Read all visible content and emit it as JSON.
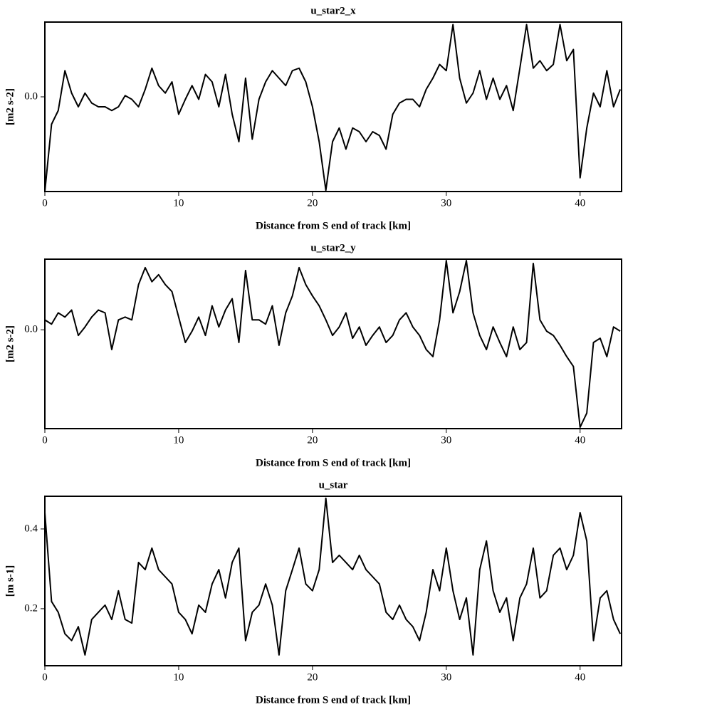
{
  "chart_data": [
    {
      "type": "line",
      "title": "u_star2_x",
      "xlabel": "Distance from S end of track [km]",
      "ylabel": "[m2 s-2]",
      "xlim": [
        0,
        43.1
      ],
      "ylim": [
        -0.076,
        0.06
      ],
      "xticks": [
        0,
        10,
        20,
        30,
        40
      ],
      "yticks": [
        {
          "value": 0,
          "label": "0.0"
        }
      ],
      "x": [
        0,
        0.5,
        1,
        1.5,
        2,
        2.5,
        3,
        3.5,
        4,
        4.5,
        5,
        5.5,
        6,
        6.5,
        7,
        7.5,
        8,
        8.5,
        9,
        9.5,
        10,
        10.5,
        11,
        11.5,
        12,
        12.5,
        13,
        13.5,
        14,
        14.5,
        15,
        15.5,
        16,
        16.5,
        17,
        17.5,
        18,
        18.5,
        19,
        19.5,
        20,
        20.5,
        21,
        21.5,
        22,
        22.5,
        23,
        23.5,
        24,
        24.5,
        25,
        25.5,
        26,
        26.5,
        27,
        27.5,
        28,
        28.5,
        29,
        29.5,
        30,
        30.5,
        31,
        31.5,
        32,
        32.5,
        33,
        33.5,
        34,
        34.5,
        35,
        35.5,
        36,
        36.5,
        37,
        37.5,
        38,
        38.5,
        39,
        39.5,
        40,
        40.5,
        41,
        41.5,
        42,
        42.5,
        43
      ],
      "series": [
        {
          "color": "#000000",
          "values": [
            -0.076,
            -0.022,
            -0.011,
            0.021,
            0.003,
            -0.008,
            0.003,
            -0.005,
            -0.008,
            -0.008,
            -0.011,
            -0.008,
            0.001,
            -0.002,
            -0.008,
            0.006,
            0.023,
            0.009,
            0.003,
            0.012,
            -0.014,
            -0.002,
            0.009,
            -0.002,
            0.018,
            0.012,
            -0.008,
            0.018,
            -0.014,
            -0.036,
            0.015,
            -0.034,
            -0.002,
            0.012,
            0.021,
            0.015,
            0.009,
            0.021,
            0.023,
            0.012,
            -0.008,
            -0.036,
            -0.075,
            -0.036,
            -0.025,
            -0.042,
            -0.025,
            -0.028,
            -0.036,
            -0.028,
            -0.031,
            -0.042,
            -0.014,
            -0.005,
            -0.002,
            -0.002,
            -0.008,
            0.006,
            0.015,
            0.026,
            0.021,
            0.058,
            0.015,
            -0.005,
            0.003,
            0.021,
            -0.002,
            0.015,
            -0.002,
            0.009,
            -0.011,
            0.023,
            0.058,
            0.023,
            0.029,
            0.021,
            0.026,
            0.058,
            0.029,
            0.038,
            -0.065,
            -0.025,
            0.003,
            -0.008,
            0.021,
            -0.008,
            0.006
          ]
        }
      ]
    },
    {
      "type": "line",
      "title": "u_star2_y",
      "xlabel": "Distance from S end of track [km]",
      "ylabel": "[m2 s-2]",
      "xlim": [
        0,
        43.1
      ],
      "ylim": [
        -0.07,
        0.05
      ],
      "xticks": [
        0,
        10,
        20,
        30,
        40
      ],
      "yticks": [
        {
          "value": 0,
          "label": "0.0"
        }
      ],
      "x": [
        0,
        0.5,
        1,
        1.5,
        2,
        2.5,
        3,
        3.5,
        4,
        4.5,
        5,
        5.5,
        6,
        6.5,
        7,
        7.5,
        8,
        8.5,
        9,
        9.5,
        10,
        10.5,
        11,
        11.5,
        12,
        12.5,
        13,
        13.5,
        14,
        14.5,
        15,
        15.5,
        16,
        16.5,
        17,
        17.5,
        18,
        18.5,
        19,
        19.5,
        20,
        20.5,
        21,
        21.5,
        22,
        22.5,
        23,
        23.5,
        24,
        24.5,
        25,
        25.5,
        26,
        26.5,
        27,
        27.5,
        28,
        28.5,
        29,
        29.5,
        30,
        30.5,
        31,
        31.5,
        32,
        32.5,
        33,
        33.5,
        34,
        34.5,
        35,
        35.5,
        36,
        36.5,
        37,
        37.5,
        38,
        38.5,
        39,
        39.5,
        40,
        40.5,
        41,
        41.5,
        42,
        42.5,
        43
      ],
      "series": [
        {
          "color": "#000000",
          "values": [
            0.007,
            0.004,
            0.012,
            0.009,
            0.014,
            -0.004,
            0.002,
            0.009,
            0.014,
            0.012,
            -0.014,
            0.007,
            0.009,
            0.007,
            0.032,
            0.044,
            0.034,
            0.039,
            0.032,
            0.027,
            0.009,
            -0.009,
            -0.001,
            0.009,
            -0.004,
            0.017,
            0.002,
            0.014,
            0.022,
            -0.009,
            0.042,
            0.007,
            0.007,
            0.004,
            0.017,
            -0.011,
            0.012,
            0.024,
            0.044,
            0.032,
            0.024,
            0.017,
            0.007,
            -0.004,
            0.002,
            0.012,
            -0.006,
            0.002,
            -0.011,
            -0.004,
            0.002,
            -0.009,
            -0.004,
            0.007,
            0.012,
            0.002,
            -0.004,
            -0.014,
            -0.019,
            0.007,
            0.049,
            0.012,
            0.027,
            0.049,
            0.012,
            -0.004,
            -0.014,
            0.002,
            -0.009,
            -0.019,
            0.002,
            -0.014,
            -0.009,
            0.047,
            0.007,
            -0.001,
            -0.004,
            -0.011,
            -0.019,
            -0.026,
            -0.069,
            -0.059,
            -0.009,
            -0.006,
            -0.019,
            0.002,
            -0.001
          ]
        }
      ]
    },
    {
      "type": "line",
      "title": "u_star",
      "xlabel": "Distance from S end of track [km]",
      "ylabel": "[m s-1]",
      "xlim": [
        0,
        43.1
      ],
      "ylim": [
        0.057,
        0.482
      ],
      "xticks": [
        0,
        10,
        20,
        30,
        40
      ],
      "yticks": [
        0.2,
        0.4
      ],
      "x": [
        0,
        0.5,
        1,
        1.5,
        2,
        2.5,
        3,
        3.5,
        4,
        4.5,
        5,
        5.5,
        6,
        6.5,
        7,
        7.5,
        8,
        8.5,
        9,
        9.5,
        10,
        10.5,
        11,
        11.5,
        12,
        12.5,
        13,
        13.5,
        14,
        14.5,
        15,
        15.5,
        16,
        16.5,
        17,
        17.5,
        18,
        18.5,
        19,
        19.5,
        20,
        20.5,
        21,
        21.5,
        22,
        22.5,
        23,
        23.5,
        24,
        24.5,
        25,
        25.5,
        26,
        26.5,
        27,
        27.5,
        28,
        28.5,
        29,
        29.5,
        30,
        30.5,
        31,
        31.5,
        32,
        32.5,
        33,
        33.5,
        34,
        34.5,
        35,
        35.5,
        36,
        36.5,
        37,
        37.5,
        38,
        38.5,
        39,
        39.5,
        40,
        40.5,
        41,
        41.5,
        42,
        42.5,
        43
      ],
      "series": [
        {
          "color": "#000000",
          "values": [
            0.441,
            0.218,
            0.191,
            0.137,
            0.12,
            0.155,
            0.084,
            0.173,
            0.191,
            0.209,
            0.173,
            0.245,
            0.173,
            0.164,
            0.316,
            0.298,
            0.352,
            0.298,
            0.28,
            0.262,
            0.191,
            0.173,
            0.137,
            0.209,
            0.191,
            0.262,
            0.298,
            0.227,
            0.316,
            0.352,
            0.12,
            0.191,
            0.209,
            0.262,
            0.209,
            0.084,
            0.245,
            0.298,
            0.352,
            0.262,
            0.245,
            0.298,
            0.477,
            0.316,
            0.334,
            0.316,
            0.298,
            0.334,
            0.298,
            0.28,
            0.262,
            0.191,
            0.173,
            0.209,
            0.173,
            0.155,
            0.12,
            0.191,
            0.298,
            0.245,
            0.352,
            0.245,
            0.173,
            0.227,
            0.084,
            0.298,
            0.37,
            0.245,
            0.191,
            0.227,
            0.12,
            0.227,
            0.262,
            0.352,
            0.227,
            0.245,
            0.334,
            0.352,
            0.298,
            0.334,
            0.441,
            0.37,
            0.12,
            0.227,
            0.245,
            0.173,
            0.137
          ]
        }
      ]
    }
  ]
}
